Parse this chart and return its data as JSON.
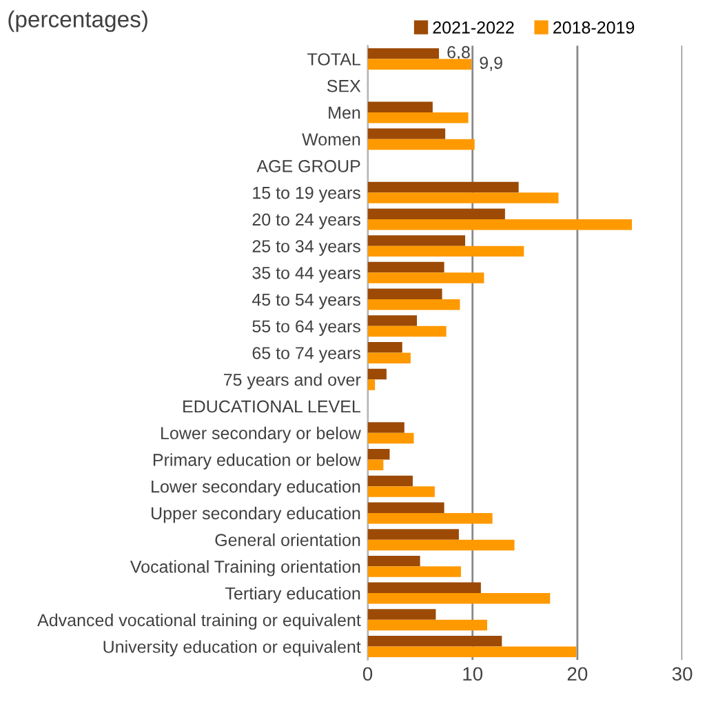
{
  "chart_data": {
    "type": "bar",
    "orientation": "horizontal",
    "title": "(percentages)",
    "categories": [
      "TOTAL",
      "SEX",
      "Men",
      "Women",
      "AGE GROUP",
      "15 to 19 years",
      "20 to 24 years",
      "25 to 34 years",
      "35 to 44 years",
      "45 to 54 years",
      "55 to 64 years",
      "65 to 74 years",
      "75 years and over",
      "EDUCATIONAL LEVEL",
      "Lower secondary or below",
      "Primary education or below",
      "Lower secondary education",
      "Upper secondary education",
      "General orientation",
      "Vocational Training orientation",
      "Tertiary education",
      "Advanced vocational training or equivalent",
      "University education or equivalent"
    ],
    "series": [
      {
        "name": "2021-2022",
        "color": "#9c4a06",
        "values": [
          6.8,
          null,
          6.2,
          7.4,
          null,
          14.4,
          13.1,
          9.3,
          7.3,
          7.1,
          4.7,
          3.3,
          1.8,
          null,
          3.5,
          2.1,
          4.3,
          7.3,
          8.7,
          5.0,
          10.8,
          6.5,
          12.8
        ],
        "value_labels": [
          "6,8",
          null,
          null,
          null,
          null,
          null,
          null,
          null,
          null,
          null,
          null,
          null,
          null,
          null,
          null,
          null,
          null,
          null,
          null,
          null,
          null,
          null,
          null
        ]
      },
      {
        "name": "2018-2019",
        "color": "#ff9900",
        "values": [
          9.9,
          null,
          9.6,
          10.2,
          null,
          18.2,
          25.2,
          14.9,
          11.1,
          8.8,
          7.5,
          4.1,
          0.7,
          null,
          4.4,
          1.5,
          6.4,
          11.9,
          14.0,
          8.9,
          17.4,
          11.4,
          19.9
        ],
        "value_labels": [
          "9,9",
          null,
          null,
          null,
          null,
          null,
          null,
          null,
          null,
          null,
          null,
          null,
          null,
          null,
          null,
          null,
          null,
          null,
          null,
          null,
          null,
          null,
          null
        ]
      }
    ],
    "xlim": [
      0,
      30
    ],
    "xticks": [
      0,
      10,
      20,
      30
    ],
    "grid": "x",
    "legend": "top"
  }
}
